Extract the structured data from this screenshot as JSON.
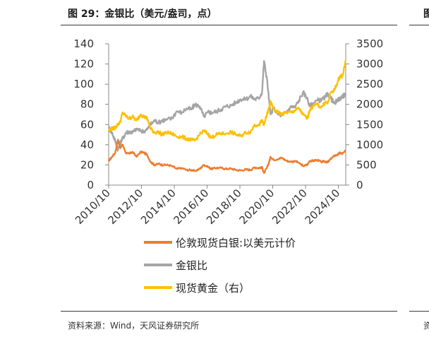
{
  "header": {
    "title": "图 29：金银比（美元/盎司，点）",
    "edge_glyph": "图"
  },
  "footer": {
    "source": "资料来源：Wind，天风证券研究所",
    "edge_glyph": "资"
  },
  "colors": {
    "silver_gold_ratio": "#ED7D31",
    "gold_silver_ratio": "#A5A5A5",
    "spot_gold": "#FFC000",
    "axis": "#888888"
  },
  "chart_data": {
    "type": "line",
    "x_ticks": [
      "2010/10",
      "2012/10",
      "2014/10",
      "2016/10",
      "2018/10",
      "2020/10",
      "2022/10",
      "2024/10"
    ],
    "x_range": [
      2010.75,
      2025.2
    ],
    "y_left": {
      "ticks": [
        "0",
        "20",
        "40",
        "60",
        "80",
        "100",
        "120",
        "140"
      ],
      "range": [
        0,
        140
      ]
    },
    "y_right": {
      "ticks": [
        "0",
        "500",
        "1000",
        "1500",
        "2000",
        "2500",
        "3000",
        "3500"
      ],
      "range": [
        0,
        3500
      ]
    },
    "grid": false,
    "legend_position": "bottom",
    "series": [
      {
        "name": "伦敦现货白银:以美元计价",
        "axis": "left",
        "points": [
          [
            2010.75,
            24
          ],
          [
            2010.95,
            28
          ],
          [
            2011.15,
            32
          ],
          [
            2011.32,
            45
          ],
          [
            2011.45,
            37
          ],
          [
            2011.6,
            40
          ],
          [
            2011.8,
            32
          ],
          [
            2012.0,
            31
          ],
          [
            2012.2,
            33
          ],
          [
            2012.45,
            28
          ],
          [
            2012.7,
            33
          ],
          [
            2012.9,
            32
          ],
          [
            2013.1,
            30
          ],
          [
            2013.3,
            23
          ],
          [
            2013.55,
            20
          ],
          [
            2013.8,
            21
          ],
          [
            2014.0,
            20
          ],
          [
            2014.3,
            20
          ],
          [
            2014.6,
            19
          ],
          [
            2014.9,
            16
          ],
          [
            2015.2,
            17
          ],
          [
            2015.5,
            15
          ],
          [
            2015.8,
            15
          ],
          [
            2016.0,
            14
          ],
          [
            2016.3,
            16
          ],
          [
            2016.55,
            20
          ],
          [
            2016.8,
            18
          ],
          [
            2017.0,
            16
          ],
          [
            2017.3,
            17
          ],
          [
            2017.6,
            17
          ],
          [
            2017.9,
            16
          ],
          [
            2018.2,
            16.5
          ],
          [
            2018.5,
            15
          ],
          [
            2018.8,
            14.5
          ],
          [
            2019.1,
            15.5
          ],
          [
            2019.4,
            15
          ],
          [
            2019.65,
            17.5
          ],
          [
            2019.9,
            17
          ],
          [
            2020.1,
            17.5
          ],
          [
            2020.22,
            12
          ],
          [
            2020.4,
            17
          ],
          [
            2020.55,
            24
          ],
          [
            2020.62,
            28
          ],
          [
            2020.8,
            25
          ],
          [
            2021.1,
            26
          ],
          [
            2021.3,
            27
          ],
          [
            2021.6,
            24
          ],
          [
            2021.9,
            23
          ],
          [
            2022.1,
            24
          ],
          [
            2022.35,
            22
          ],
          [
            2022.6,
            19
          ],
          [
            2022.85,
            20
          ],
          [
            2023.0,
            24
          ],
          [
            2023.2,
            24
          ],
          [
            2023.45,
            25
          ],
          [
            2023.7,
            23
          ],
          [
            2023.95,
            23.5
          ],
          [
            2024.1,
            22.5
          ],
          [
            2024.3,
            26
          ],
          [
            2024.5,
            29
          ],
          [
            2024.7,
            30
          ],
          [
            2024.85,
            32
          ],
          [
            2025.0,
            31
          ],
          [
            2025.2,
            34
          ]
        ]
      },
      {
        "name": "金银比",
        "axis": "left",
        "points": [
          [
            2010.75,
            57
          ],
          [
            2010.95,
            52
          ],
          [
            2011.15,
            44
          ],
          [
            2011.32,
            35
          ],
          [
            2011.45,
            42
          ],
          [
            2011.6,
            46
          ],
          [
            2011.8,
            52
          ],
          [
            2012.0,
            53
          ],
          [
            2012.2,
            52
          ],
          [
            2012.45,
            56
          ],
          [
            2012.7,
            54
          ],
          [
            2012.9,
            53
          ],
          [
            2013.1,
            55
          ],
          [
            2013.3,
            60
          ],
          [
            2013.55,
            64
          ],
          [
            2013.8,
            62
          ],
          [
            2014.0,
            64
          ],
          [
            2014.3,
            65
          ],
          [
            2014.6,
            66
          ],
          [
            2014.9,
            73
          ],
          [
            2015.2,
            72
          ],
          [
            2015.5,
            76
          ],
          [
            2015.8,
            75
          ],
          [
            2016.0,
            80
          ],
          [
            2016.3,
            78
          ],
          [
            2016.55,
            68
          ],
          [
            2016.8,
            72
          ],
          [
            2017.0,
            72
          ],
          [
            2017.3,
            73
          ],
          [
            2017.6,
            75
          ],
          [
            2017.9,
            78
          ],
          [
            2018.2,
            79
          ],
          [
            2018.5,
            82
          ],
          [
            2018.8,
            85
          ],
          [
            2019.1,
            85
          ],
          [
            2019.4,
            88
          ],
          [
            2019.65,
            85
          ],
          [
            2019.9,
            86
          ],
          [
            2020.1,
            92
          ],
          [
            2020.22,
            123
          ],
          [
            2020.4,
            105
          ],
          [
            2020.55,
            80
          ],
          [
            2020.62,
            70
          ],
          [
            2020.8,
            76
          ],
          [
            2021.1,
            70
          ],
          [
            2021.3,
            69
          ],
          [
            2021.6,
            73
          ],
          [
            2021.9,
            78
          ],
          [
            2022.1,
            77
          ],
          [
            2022.35,
            84
          ],
          [
            2022.6,
            92
          ],
          [
            2022.85,
            86
          ],
          [
            2023.0,
            78
          ],
          [
            2023.2,
            81
          ],
          [
            2023.45,
            84
          ],
          [
            2023.7,
            84
          ],
          [
            2023.95,
            87
          ],
          [
            2024.1,
            90
          ],
          [
            2024.3,
            86
          ],
          [
            2024.5,
            81
          ],
          [
            2024.7,
            84
          ],
          [
            2024.85,
            86
          ],
          [
            2025.0,
            88
          ],
          [
            2025.2,
            90
          ]
        ]
      },
      {
        "name": "现货黄金（右）",
        "axis": "right",
        "points": [
          [
            2010.75,
            1350
          ],
          [
            2010.95,
            1400
          ],
          [
            2011.15,
            1420
          ],
          [
            2011.32,
            1520
          ],
          [
            2011.45,
            1550
          ],
          [
            2011.6,
            1800
          ],
          [
            2011.8,
            1700
          ],
          [
            2012.0,
            1650
          ],
          [
            2012.2,
            1700
          ],
          [
            2012.45,
            1600
          ],
          [
            2012.7,
            1750
          ],
          [
            2012.9,
            1700
          ],
          [
            2013.1,
            1650
          ],
          [
            2013.3,
            1400
          ],
          [
            2013.55,
            1300
          ],
          [
            2013.8,
            1320
          ],
          [
            2014.0,
            1250
          ],
          [
            2014.3,
            1300
          ],
          [
            2014.6,
            1280
          ],
          [
            2014.9,
            1200
          ],
          [
            2015.2,
            1200
          ],
          [
            2015.5,
            1150
          ],
          [
            2015.8,
            1120
          ],
          [
            2016.0,
            1100
          ],
          [
            2016.3,
            1250
          ],
          [
            2016.55,
            1350
          ],
          [
            2016.8,
            1270
          ],
          [
            2017.0,
            1170
          ],
          [
            2017.3,
            1250
          ],
          [
            2017.6,
            1270
          ],
          [
            2017.9,
            1280
          ],
          [
            2018.2,
            1320
          ],
          [
            2018.5,
            1250
          ],
          [
            2018.8,
            1220
          ],
          [
            2019.1,
            1300
          ],
          [
            2019.4,
            1320
          ],
          [
            2019.65,
            1500
          ],
          [
            2019.9,
            1480
          ],
          [
            2020.1,
            1600
          ],
          [
            2020.22,
            1500
          ],
          [
            2020.4,
            1750
          ],
          [
            2020.55,
            1950
          ],
          [
            2020.62,
            2050
          ],
          [
            2020.8,
            1900
          ],
          [
            2021.1,
            1800
          ],
          [
            2021.3,
            1750
          ],
          [
            2021.6,
            1800
          ],
          [
            2021.9,
            1800
          ],
          [
            2022.1,
            1850
          ],
          [
            2022.35,
            1900
          ],
          [
            2022.6,
            1750
          ],
          [
            2022.85,
            1650
          ],
          [
            2023.0,
            1850
          ],
          [
            2023.2,
            1950
          ],
          [
            2023.45,
            2000
          ],
          [
            2023.7,
            1920
          ],
          [
            2023.95,
            2050
          ],
          [
            2024.1,
            2030
          ],
          [
            2024.3,
            2300
          ],
          [
            2024.5,
            2350
          ],
          [
            2024.7,
            2550
          ],
          [
            2024.85,
            2700
          ],
          [
            2025.0,
            2700
          ],
          [
            2025.2,
            3100
          ]
        ]
      }
    ]
  }
}
